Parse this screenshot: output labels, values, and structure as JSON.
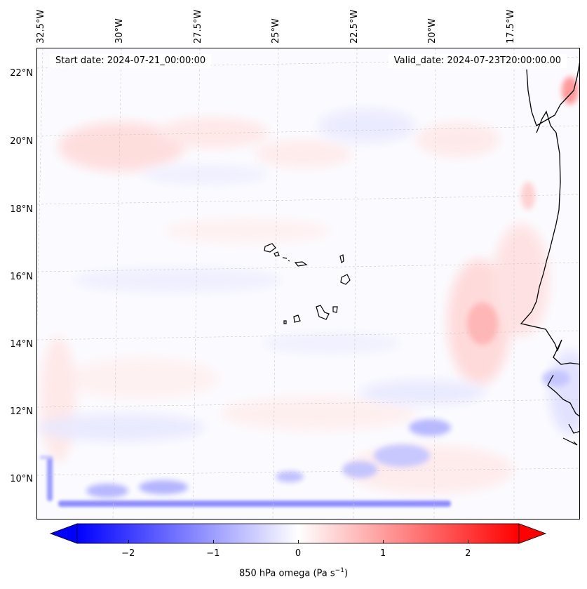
{
  "map": {
    "start_date": "Start date: 2024-07-21_00:00:00",
    "valid_date": "Valid_date: 2024-07-23T20:00:00.00",
    "lon_labels": [
      "32.5°W",
      "30°W",
      "27.5°W",
      "25°W",
      "22.5°W",
      "20°W",
      "17.5°W"
    ],
    "lat_labels": [
      "22°N",
      "20°N",
      "18°N",
      "16°N",
      "14°N",
      "12°N",
      "10°N"
    ]
  },
  "colorbar": {
    "label": "850 hPa omega (Pa s",
    "label_sup": "−1",
    "label_end": ")",
    "ticks": [
      "−2",
      "−1",
      "0",
      "1",
      "2"
    ],
    "tick_values": [
      -2,
      -1,
      0,
      1,
      2
    ],
    "range": [
      -2.6,
      2.6
    ],
    "colors": {
      "neg": "#0000ff",
      "mid": "#ffffff",
      "pos": "#ff0000"
    }
  }
}
